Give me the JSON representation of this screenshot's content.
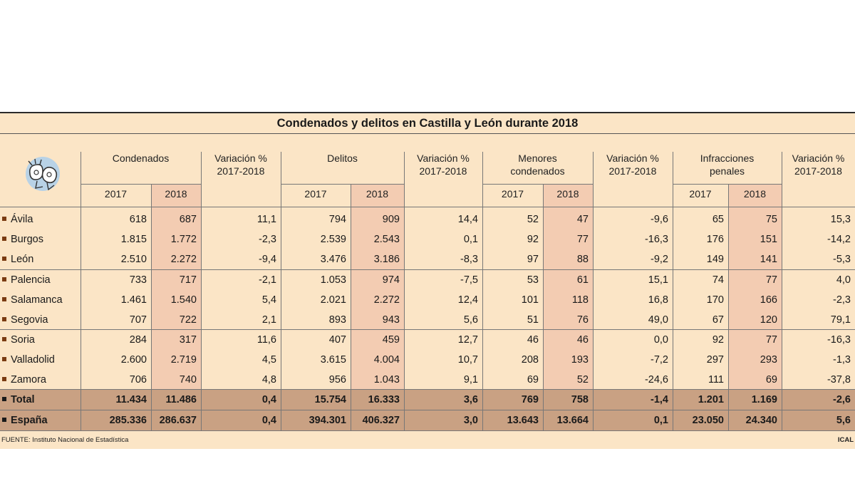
{
  "title": "Condenados y delitos en Castilla y León durante 2018",
  "colors": {
    "panel": "#fbe5c6",
    "shade_2018": "#f3ccb2",
    "total_band": "#c9a183",
    "bullet": "#7a3b12"
  },
  "logo_icon": "handcuffs-icon",
  "groups": [
    {
      "label": "Condenados",
      "years": [
        "2017",
        "2018"
      ]
    },
    {
      "label": "Variación %\n2017-2018"
    },
    {
      "label": "Delitos",
      "years": [
        "2017",
        "2018"
      ]
    },
    {
      "label": "Variación %\n2017-2018"
    },
    {
      "label": "Menores\ncondenados",
      "years": [
        "2017",
        "2018"
      ]
    },
    {
      "label": "Variación %\n2017-2018"
    },
    {
      "label": "Infracciones\npenales",
      "years": [
        "2017",
        "2018"
      ]
    },
    {
      "label": "Variación %\n2017-2018"
    }
  ],
  "rows": [
    {
      "label": "Ávila",
      "values": [
        "618",
        "687",
        "11,1",
        "794",
        "909",
        "14,4",
        "52",
        "47",
        "-9,6",
        "65",
        "75",
        "15,3"
      ]
    },
    {
      "label": "Burgos",
      "values": [
        "1.815",
        "1.772",
        "-2,3",
        "2.539",
        "2.543",
        "0,1",
        "92",
        "77",
        "-16,3",
        "176",
        "151",
        "-14,2"
      ]
    },
    {
      "label": "León",
      "values": [
        "2.510",
        "2.272",
        "-9,4",
        "3.476",
        "3.186",
        "-8,3",
        "97",
        "88",
        "-9,2",
        "149",
        "141",
        "-5,3"
      ]
    },
    {
      "label": "Palencia",
      "values": [
        "733",
        "717",
        "-2,1",
        "1.053",
        "974",
        "-7,5",
        "53",
        "61",
        "15,1",
        "74",
        "77",
        "4,0"
      ]
    },
    {
      "label": "Salamanca",
      "values": [
        "1.461",
        "1.540",
        "5,4",
        "2.021",
        "2.272",
        "12,4",
        "101",
        "118",
        "16,8",
        "170",
        "166",
        "-2,3"
      ]
    },
    {
      "label": "Segovia",
      "values": [
        "707",
        "722",
        "2,1",
        "893",
        "943",
        "5,6",
        "51",
        "76",
        "49,0",
        "67",
        "120",
        "79,1"
      ]
    },
    {
      "label": "Soria",
      "values": [
        "284",
        "317",
        "11,6",
        "407",
        "459",
        "12,7",
        "46",
        "46",
        "0,0",
        "92",
        "77",
        "-16,3"
      ]
    },
    {
      "label": "Valladolid",
      "values": [
        "2.600",
        "2.719",
        "4,5",
        "3.615",
        "4.004",
        "10,7",
        "208",
        "193",
        "-7,2",
        "297",
        "293",
        "-1,3"
      ]
    },
    {
      "label": "Zamora",
      "values": [
        "706",
        "740",
        "4,8",
        "956",
        "1.043",
        "9,1",
        "69",
        "52",
        "-24,6",
        "111",
        "69",
        "-37,8"
      ]
    }
  ],
  "totals": [
    {
      "label": "Total",
      "values": [
        "11.434",
        "11.486",
        "0,4",
        "15.754",
        "16.333",
        "3,6",
        "769",
        "758",
        "-1,4",
        "1.201",
        "1.169",
        "-2,6"
      ]
    },
    {
      "label": "España",
      "values": [
        "285.336",
        "286.637",
        "0,4",
        "394.301",
        "406.327",
        "3,0",
        "13.643",
        "13.664",
        "0,1",
        "23.050",
        "24.340",
        "5,6"
      ]
    }
  ],
  "source": "FUENTE: Instituto Nacional de Estadística",
  "credit": "ICAL"
}
